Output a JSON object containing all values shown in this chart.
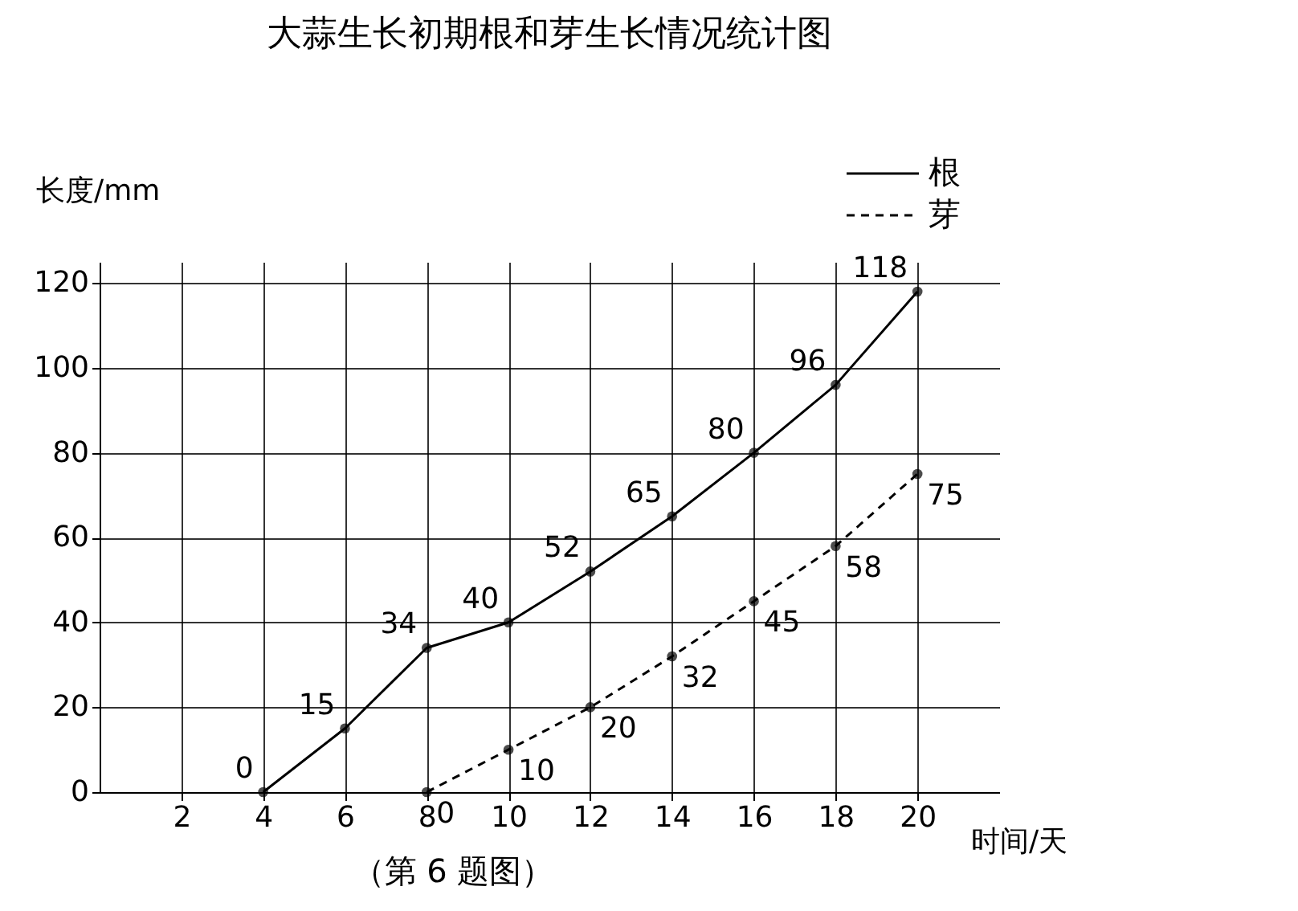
{
  "chart_data": {
    "type": "line",
    "title": "大蒜生长初期根和芽生长情况统计图",
    "xlabel": "时间/天",
    "ylabel": "长度/mm",
    "series": [
      {
        "name": "根",
        "color": "#000000",
        "line_style": "solid",
        "x": [
          4,
          6,
          8,
          10,
          12,
          14,
          16,
          18,
          20
        ],
        "values": [
          0,
          15,
          34,
          40,
          52,
          65,
          80,
          96,
          118
        ]
      },
      {
        "name": "芽",
        "color": "#000000",
        "line_style": "dashed",
        "x": [
          8,
          10,
          12,
          14,
          16,
          18,
          20
        ],
        "values": [
          0,
          10,
          20,
          32,
          45,
          58,
          75
        ]
      }
    ],
    "xlim": [
      0,
      22
    ],
    "xticks": [
      2,
      4,
      6,
      8,
      10,
      12,
      14,
      16,
      18,
      20
    ],
    "ylim": [
      0,
      125
    ],
    "yticks": [
      0,
      20,
      40,
      60,
      80,
      100,
      120
    ],
    "grid": true,
    "legend": "top right",
    "marker": "circle",
    "data_labels": true,
    "annotations": [
      "（第 6 题图）"
    ]
  }
}
